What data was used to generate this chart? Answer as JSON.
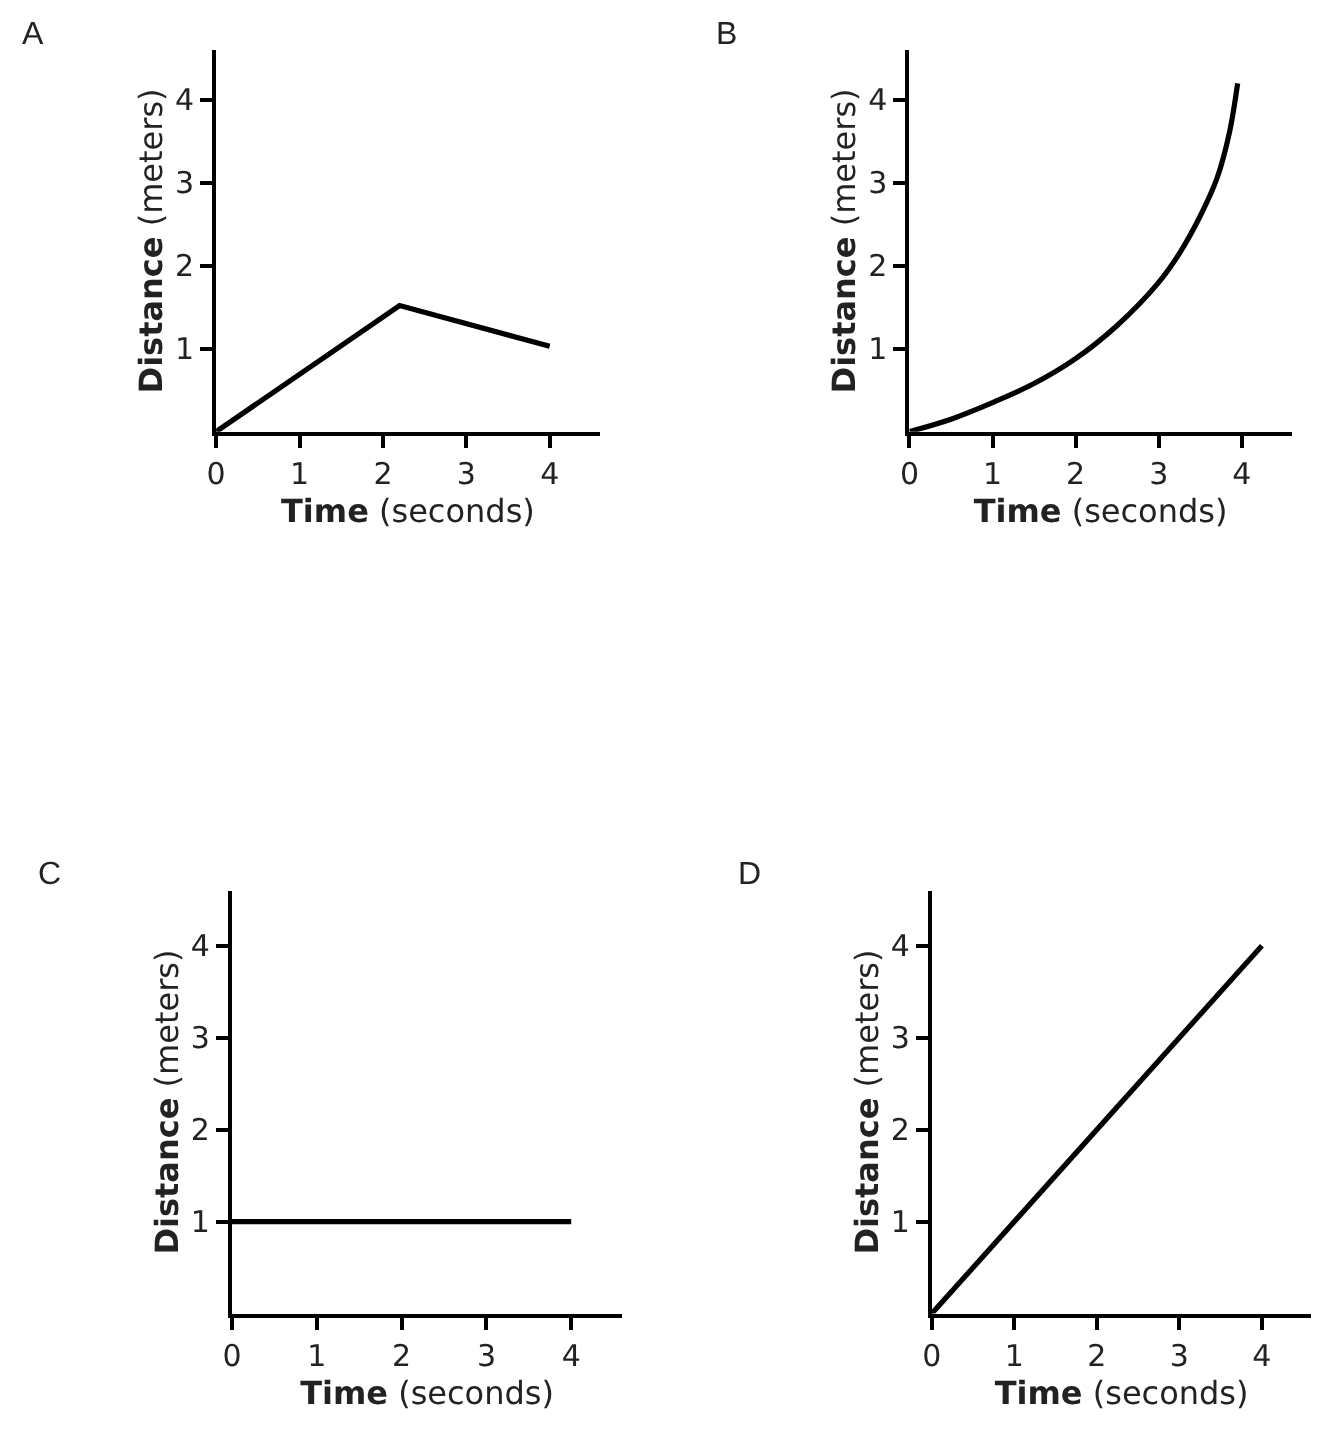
{
  "chart_data": [
    {
      "type": "line",
      "title": "A",
      "xlabel": "Time (seconds)",
      "ylabel": "Distance (meters)",
      "x": [
        0,
        2.2,
        4
      ],
      "series": [
        {
          "color": "#000000",
          "values": [
            0,
            1.52,
            1.03
          ]
        }
      ],
      "xlim": [
        0,
        4.6
      ],
      "ylim": [
        0,
        4.6
      ],
      "xticks": [
        0,
        1,
        2,
        3,
        4
      ],
      "yticks": [
        1,
        2,
        3,
        4
      ],
      "marker": "none",
      "line_style": "solid"
    },
    {
      "type": "line",
      "title": "B",
      "xlabel": "Time (seconds)",
      "ylabel": "Distance (meters)",
      "x": [
        0,
        0.5,
        1,
        1.5,
        2,
        2.5,
        3,
        3.25,
        3.5,
        3.7,
        3.85,
        3.95
      ],
      "series": [
        {
          "color": "#000000",
          "values": [
            0,
            0.15,
            0.35,
            0.58,
            0.88,
            1.28,
            1.8,
            2.15,
            2.6,
            3.05,
            3.6,
            4.2
          ]
        }
      ],
      "xlim": [
        0,
        4.6
      ],
      "ylim": [
        0,
        4.6
      ],
      "xticks": [
        0,
        1,
        2,
        3,
        4
      ],
      "yticks": [
        1,
        2,
        3,
        4
      ],
      "marker": "none",
      "line_style": "solid"
    },
    {
      "type": "line",
      "title": "C",
      "xlabel": "Time (seconds)",
      "ylabel": "Distance (meters)",
      "x": [
        0,
        4
      ],
      "series": [
        {
          "color": "#000000",
          "values": [
            1,
            1
          ]
        }
      ],
      "xlim": [
        0,
        4.6
      ],
      "ylim": [
        0,
        4.6
      ],
      "xticks": [
        0,
        1,
        2,
        3,
        4
      ],
      "yticks": [
        1,
        2,
        3,
        4
      ],
      "marker": "none",
      "line_style": "solid"
    },
    {
      "type": "line",
      "title": "D",
      "xlabel": "Time (seconds)",
      "ylabel": "Distance (meters)",
      "x": [
        0,
        4
      ],
      "series": [
        {
          "color": "#000000",
          "values": [
            0,
            4
          ]
        }
      ],
      "xlim": [
        0,
        4.6
      ],
      "ylim": [
        0,
        4.6
      ],
      "xticks": [
        0,
        1,
        2,
        3,
        4
      ],
      "yticks": [
        1,
        2,
        3,
        4
      ],
      "marker": "none",
      "line_style": "solid"
    }
  ]
}
